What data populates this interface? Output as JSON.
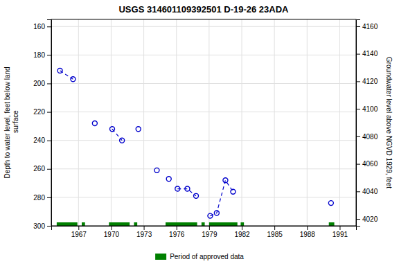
{
  "chart_data": {
    "type": "scatter",
    "title": "USGS 314601109392501 D-19-26 23ADA",
    "y_label": "Depth to water level, feet below land\n surface",
    "y2_label": "Groundwater level above NGVD 1929, feet",
    "xlim": [
      1964.5,
      1992.5
    ],
    "xticks": [
      1967,
      1970,
      1973,
      1976,
      1979,
      1982,
      1985,
      1988,
      1991
    ],
    "ylim": [
      300,
      155
    ],
    "yticks": [
      160,
      180,
      200,
      220,
      240,
      260,
      280,
      300
    ],
    "y2lim": [
      4015,
      4165
    ],
    "y2ticks": [
      4020,
      4040,
      4060,
      4080,
      4100,
      4120,
      4140,
      4160
    ],
    "grid": true,
    "legend": "bottom",
    "series": [
      {
        "type": "scatter",
        "marker": "circle-open",
        "color": "#0000CC",
        "x": [
          1965.3,
          1966.5,
          1968.5,
          1970.1,
          1971.0,
          1972.5,
          1974.2,
          1975.3,
          1976.1,
          1977.0,
          1977.8,
          1979.1,
          1979.7,
          1980.5,
          1981.2,
          1990.2
        ],
        "values": [
          191,
          197,
          228,
          232,
          240,
          232,
          261,
          267,
          274,
          274,
          279,
          293,
          291,
          268,
          276,
          284
        ]
      },
      {
        "type": "line",
        "line_style": "dashed",
        "color": "#0000CC",
        "x": [
          1965.3,
          1966.5
        ],
        "values": [
          191,
          197
        ]
      },
      {
        "type": "line",
        "line_style": "dashed",
        "color": "#0000CC",
        "x": [
          1970.1,
          1971.0
        ],
        "values": [
          232,
          240
        ]
      },
      {
        "type": "line",
        "line_style": "dashed",
        "color": "#0000CC",
        "x": [
          1976.1,
          1977.0,
          1977.8
        ],
        "values": [
          274,
          274,
          279
        ]
      },
      {
        "type": "line",
        "line_style": "dashed",
        "color": "#0000CC",
        "x": [
          1979.1,
          1979.7,
          1980.5,
          1981.2
        ],
        "values": [
          293,
          291,
          268,
          276
        ]
      },
      {
        "type": "span",
        "name": "Period of approved data",
        "color": "#008000",
        "x_ranges": [
          [
            1965.0,
            1966.9
          ],
          [
            1967.3,
            1967.6
          ],
          [
            1969.8,
            1971.7
          ],
          [
            1972.1,
            1972.4
          ],
          [
            1975.0,
            1977.9
          ],
          [
            1978.3,
            1978.6
          ],
          [
            1979.0,
            1981.6
          ],
          [
            1981.9,
            1982.2
          ],
          [
            1990.0,
            1990.5
          ]
        ]
      }
    ]
  }
}
